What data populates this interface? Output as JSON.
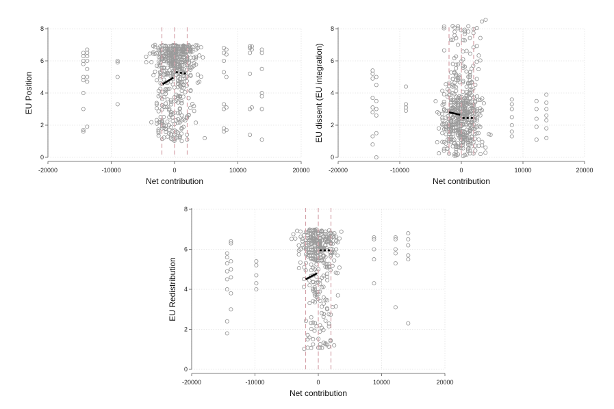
{
  "chart_data": [
    {
      "type": "scatter",
      "xlabel": "Net contribution",
      "ylabel": "EU Position",
      "xlim": [
        -20000,
        20000
      ],
      "ylim": [
        0,
        8
      ],
      "xticks": [
        "-20000",
        "-10000",
        "0",
        "10000",
        "20000"
      ],
      "yticks": [
        "0",
        "2",
        "4",
        "6",
        "8"
      ],
      "grid": true,
      "point_color": "#9a9a9a",
      "fit_color": "#000000",
      "vline_color": "#d4a0a8",
      "vlines": [
        -2000,
        0,
        2000
      ],
      "scatter_columns": [
        {
          "x": -14400,
          "y": [
            1.6,
            1.7,
            3.0,
            4.0,
            4.8,
            5.0,
            5.8,
            6.0,
            6.3,
            6.5
          ]
        },
        {
          "x": -13800,
          "y": [
            1.9,
            4.7,
            5.0,
            5.5,
            6.0,
            6.3,
            6.5,
            6.7
          ]
        },
        {
          "x": -9000,
          "y": [
            3.3,
            5.0,
            5.9,
            6.0
          ]
        },
        {
          "x": 7800,
          "y": [
            1.6,
            1.8,
            3.0,
            3.3,
            5.3,
            6.0,
            6.5,
            6.8
          ]
        },
        {
          "x": 8200,
          "y": [
            1.7,
            3.1,
            5.0,
            6.4,
            6.7
          ]
        },
        {
          "x": 11900,
          "y": [
            1.4,
            3.0,
            5.2,
            6.5,
            6.8,
            6.9
          ]
        },
        {
          "x": 12200,
          "y": [
            3.1,
            6.7,
            6.9
          ]
        },
        {
          "x": 13800,
          "y": [
            1.1,
            3.0,
            3.8,
            4.0,
            5.5,
            6.5,
            6.7
          ]
        }
      ],
      "scatter_clusters": [
        {
          "x_range": [
            -6500,
            6500
          ],
          "y_range": [
            1.0,
            7.0
          ],
          "count": 480,
          "x_spread": 2600,
          "skew_upper": true
        }
      ],
      "fit_segments": [
        {
          "x": [
            -1900,
            -200
          ],
          "y": [
            4.55,
            4.95
          ],
          "style": "solid"
        },
        {
          "x": [
            200,
            2000
          ],
          "y": [
            5.3,
            5.2
          ],
          "style": "dotted"
        }
      ]
    },
    {
      "type": "scatter",
      "xlabel": "Net contribution",
      "ylabel": "EU dissent (EU integration)",
      "xlim": [
        -20000,
        20000
      ],
      "ylim": [
        0,
        8
      ],
      "xticks": [
        "-20000",
        "-10000",
        "0",
        "10000",
        "20000"
      ],
      "yticks": [
        "0",
        "2",
        "4",
        "6",
        "8"
      ],
      "grid": true,
      "point_color": "#9a9a9a",
      "fit_color": "#000000",
      "vline_color": "#d4a0a8",
      "vlines": [
        -2000,
        0,
        2000
      ],
      "scatter_columns": [
        {
          "x": -14400,
          "y": [
            0.8,
            1.3,
            2.8,
            3.1,
            3.7,
            4.9,
            5.2,
            5.4
          ]
        },
        {
          "x": -13800,
          "y": [
            0.0,
            1.5,
            2.6,
            3.0,
            3.5,
            4.5,
            5.0
          ]
        },
        {
          "x": -9000,
          "y": [
            2.9,
            3.1,
            3.3,
            4.4
          ]
        },
        {
          "x": 8200,
          "y": [
            1.3,
            1.6,
            2.0,
            2.5,
            3.0,
            3.3,
            3.6
          ]
        },
        {
          "x": 12200,
          "y": [
            1.1,
            1.9,
            2.4,
            3.0,
            3.5
          ]
        },
        {
          "x": 13800,
          "y": [
            1.2,
            1.8,
            2.3,
            2.6,
            3.0,
            3.4,
            3.9
          ]
        }
      ],
      "scatter_clusters": [
        {
          "x_range": [
            -6500,
            6500
          ],
          "y_range": [
            0.0,
            8.6
          ],
          "count": 500,
          "x_spread": 2600,
          "skew_upper": false
        }
      ],
      "fit_segments": [
        {
          "x": [
            -2000,
            -200
          ],
          "y": [
            2.8,
            2.65
          ],
          "style": "solid"
        },
        {
          "x": [
            200,
            2000
          ],
          "y": [
            2.45,
            2.45
          ],
          "style": "dotted"
        }
      ]
    },
    {
      "type": "scatter",
      "xlabel": "Net contribution",
      "ylabel": "EU Redistribution",
      "xlim": [
        -20000,
        20000
      ],
      "ylim": [
        0,
        8
      ],
      "xticks": [
        "-20000",
        "-10000",
        "0",
        "10000",
        "20000"
      ],
      "yticks": [
        "0",
        "2",
        "4",
        "6",
        "8"
      ],
      "grid": true,
      "point_color": "#9a9a9a",
      "fit_color": "#000000",
      "vline_color": "#d4a0a8",
      "vlines": [
        -2000,
        0,
        2000
      ],
      "scatter_columns": [
        {
          "x": -14400,
          "y": [
            1.8,
            2.4,
            4.0,
            4.5,
            4.9,
            5.3,
            5.6,
            5.8
          ]
        },
        {
          "x": -13800,
          "y": [
            3.0,
            3.8,
            4.6,
            5.0,
            5.4,
            6.3,
            6.4
          ]
        },
        {
          "x": -9800,
          "y": [
            4.0,
            4.3,
            4.7,
            5.2,
            5.4
          ]
        },
        {
          "x": 8800,
          "y": [
            4.3,
            5.5,
            6.0,
            6.5,
            6.6
          ]
        },
        {
          "x": 12200,
          "y": [
            3.1,
            5.3,
            5.8,
            6.0,
            6.5,
            6.6
          ]
        },
        {
          "x": 14200,
          "y": [
            2.3,
            5.5,
            5.7,
            6.2,
            6.5,
            6.8
          ]
        }
      ],
      "scatter_clusters": [
        {
          "x_range": [
            -6500,
            6500
          ],
          "y_range": [
            1.0,
            7.0
          ],
          "count": 330,
          "x_spread": 2500,
          "skew_upper": true
        }
      ],
      "fit_segments": [
        {
          "x": [
            -2000,
            -200
          ],
          "y": [
            4.5,
            4.8
          ],
          "style": "solid"
        },
        {
          "x": [
            200,
            2000
          ],
          "y": [
            5.95,
            5.95
          ],
          "style": "dotted"
        }
      ]
    }
  ]
}
